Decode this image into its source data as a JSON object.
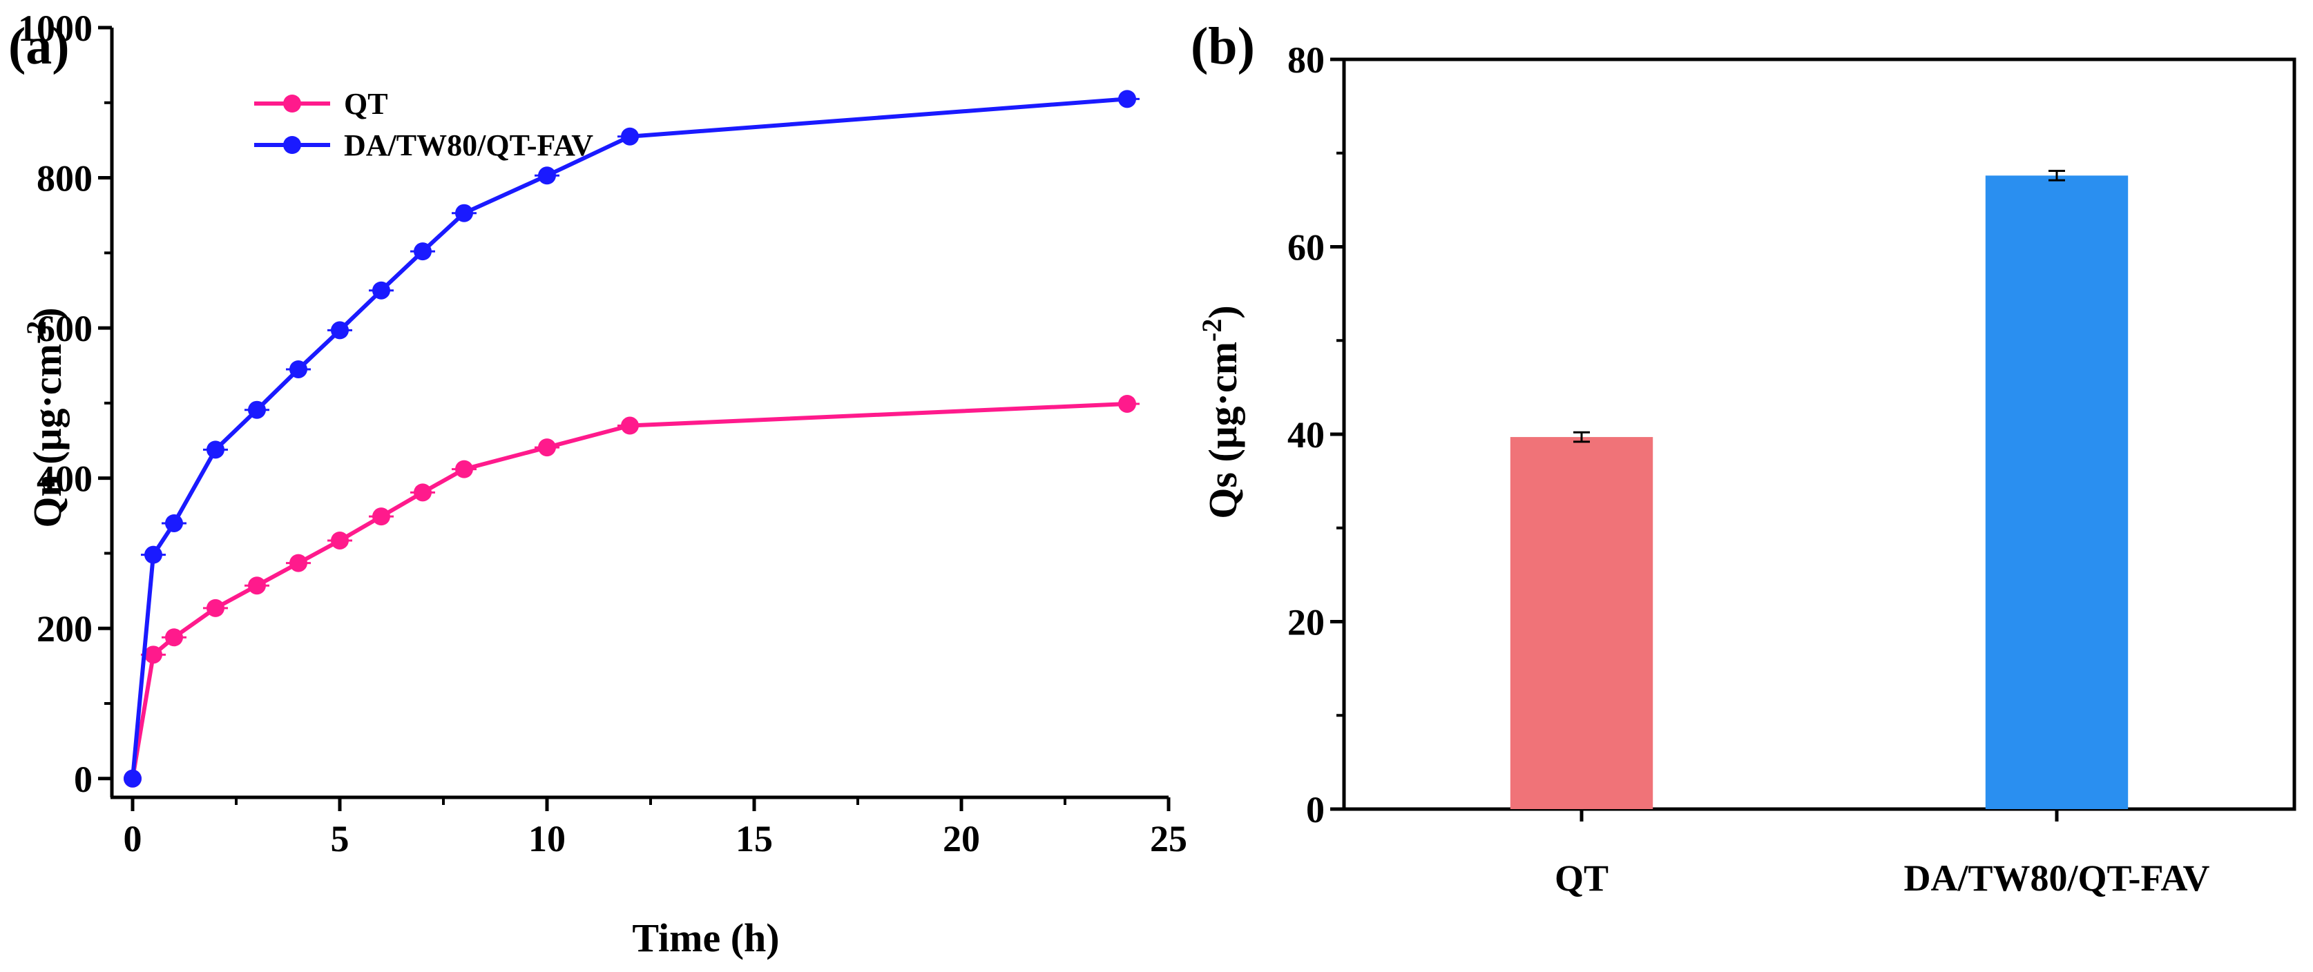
{
  "panels": {
    "a": {
      "label": "(a)"
    },
    "b": {
      "label": "(b)"
    }
  },
  "chart_data": [
    {
      "type": "line",
      "panel": "(a)",
      "title": "",
      "xlabel": "Time (h)",
      "ylabel": "Qn (μg·cm",
      "ylabel_sup": "-2",
      "ylabel_end": ")",
      "xlim": [
        -0.5,
        25
      ],
      "ylim": [
        -25,
        1000
      ],
      "xticks": [
        0,
        5,
        10,
        15,
        20,
        25
      ],
      "yticks": [
        0,
        200,
        400,
        600,
        800,
        1000
      ],
      "xtick_labels": [
        "0",
        "5",
        "10",
        "15",
        "20",
        "25"
      ],
      "ytick_labels": [
        "0",
        "200",
        "400",
        "600",
        "800",
        "1000"
      ],
      "legend_position": "top-left",
      "grid": false,
      "series": [
        {
          "name": "QT",
          "color": "#ff1a8c",
          "x": [
            0,
            0.5,
            1,
            2,
            3,
            4,
            5,
            6,
            7,
            8,
            10,
            12,
            24
          ],
          "values": [
            0,
            165,
            188,
            227,
            257,
            287,
            317,
            349,
            381,
            412,
            441,
            470,
            499
          ]
        },
        {
          "name": "DA/TW80/QT-FAV",
          "color": "#1a1aff",
          "x": [
            0,
            0.5,
            1,
            2,
            3,
            4,
            5,
            6,
            7,
            8,
            10,
            12,
            24
          ],
          "values": [
            0,
            298,
            340,
            438,
            491,
            545,
            597,
            650,
            702,
            753,
            803,
            855,
            905
          ]
        }
      ]
    },
    {
      "type": "bar",
      "panel": "(b)",
      "title": "",
      "xlabel": "",
      "ylabel": "Qs (μg·cm",
      "ylabel_sup": "-2",
      "ylabel_end": ")",
      "ylim": [
        0,
        80
      ],
      "yticks": [
        0,
        20,
        40,
        60,
        80
      ],
      "ytick_labels": [
        "0",
        "20",
        "40",
        "60",
        "80"
      ],
      "grid": false,
      "categories": [
        "QT",
        "DA/TW80/QT-FAV"
      ],
      "values": [
        39.7,
        67.6
      ],
      "errors": [
        0.5,
        0.5
      ],
      "colors": [
        "#f07378",
        "#2a8ff0"
      ]
    }
  ]
}
